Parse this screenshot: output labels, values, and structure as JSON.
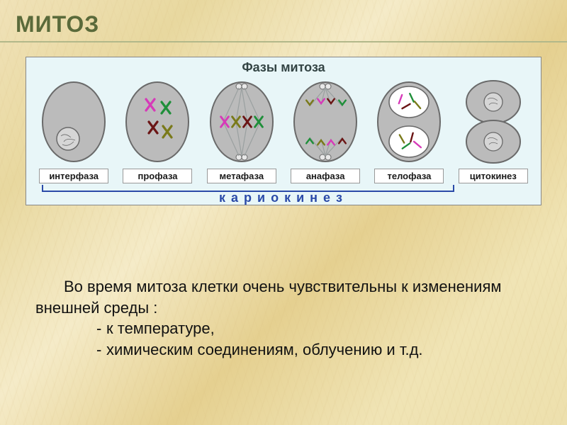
{
  "title": {
    "text": "МИТОЗ",
    "color": "#5a6a3a",
    "fontsize": 32
  },
  "underline_color": "#b2b88a",
  "diagram": {
    "panel_bg": "#e8f6f8",
    "panel_border": "#888888",
    "heading": "Фазы митоза",
    "heading_color": "#334444",
    "cell_fill": "#bbbbbb",
    "cell_stroke": "#6a6a6a",
    "nucleus_fill": "#d6d6d6",
    "nucleus_stroke": "#6a6a6a",
    "spindle_color": "#9aa0a0",
    "pole_color": "#e8e8e8",
    "chrom_colors": {
      "magenta": "#d63ab8",
      "olive": "#7a7a1a",
      "green": "#1f8f3a",
      "darkred": "#6b1515"
    },
    "phases": [
      {
        "key": "interphase",
        "label": "интерфаза"
      },
      {
        "key": "prophase",
        "label": "профаза"
      },
      {
        "key": "metaphase",
        "label": "метафаза"
      },
      {
        "key": "anaphase",
        "label": "анафаза"
      },
      {
        "key": "telophase",
        "label": "телофаза"
      },
      {
        "key": "cytokinesis",
        "label": "цитокинез"
      }
    ],
    "bracket": {
      "label": "кариокинез",
      "color": "#2a4aa8",
      "left_pct": 2,
      "right_pct": 84
    }
  },
  "body": {
    "color": "#111111",
    "fontsize": 22,
    "para": "Во время митоза клетки очень чувствительны к изменениям внешней среды :",
    "bullets": [
      "к температуре,",
      "химическим соединениям, облучению и т.д."
    ]
  }
}
